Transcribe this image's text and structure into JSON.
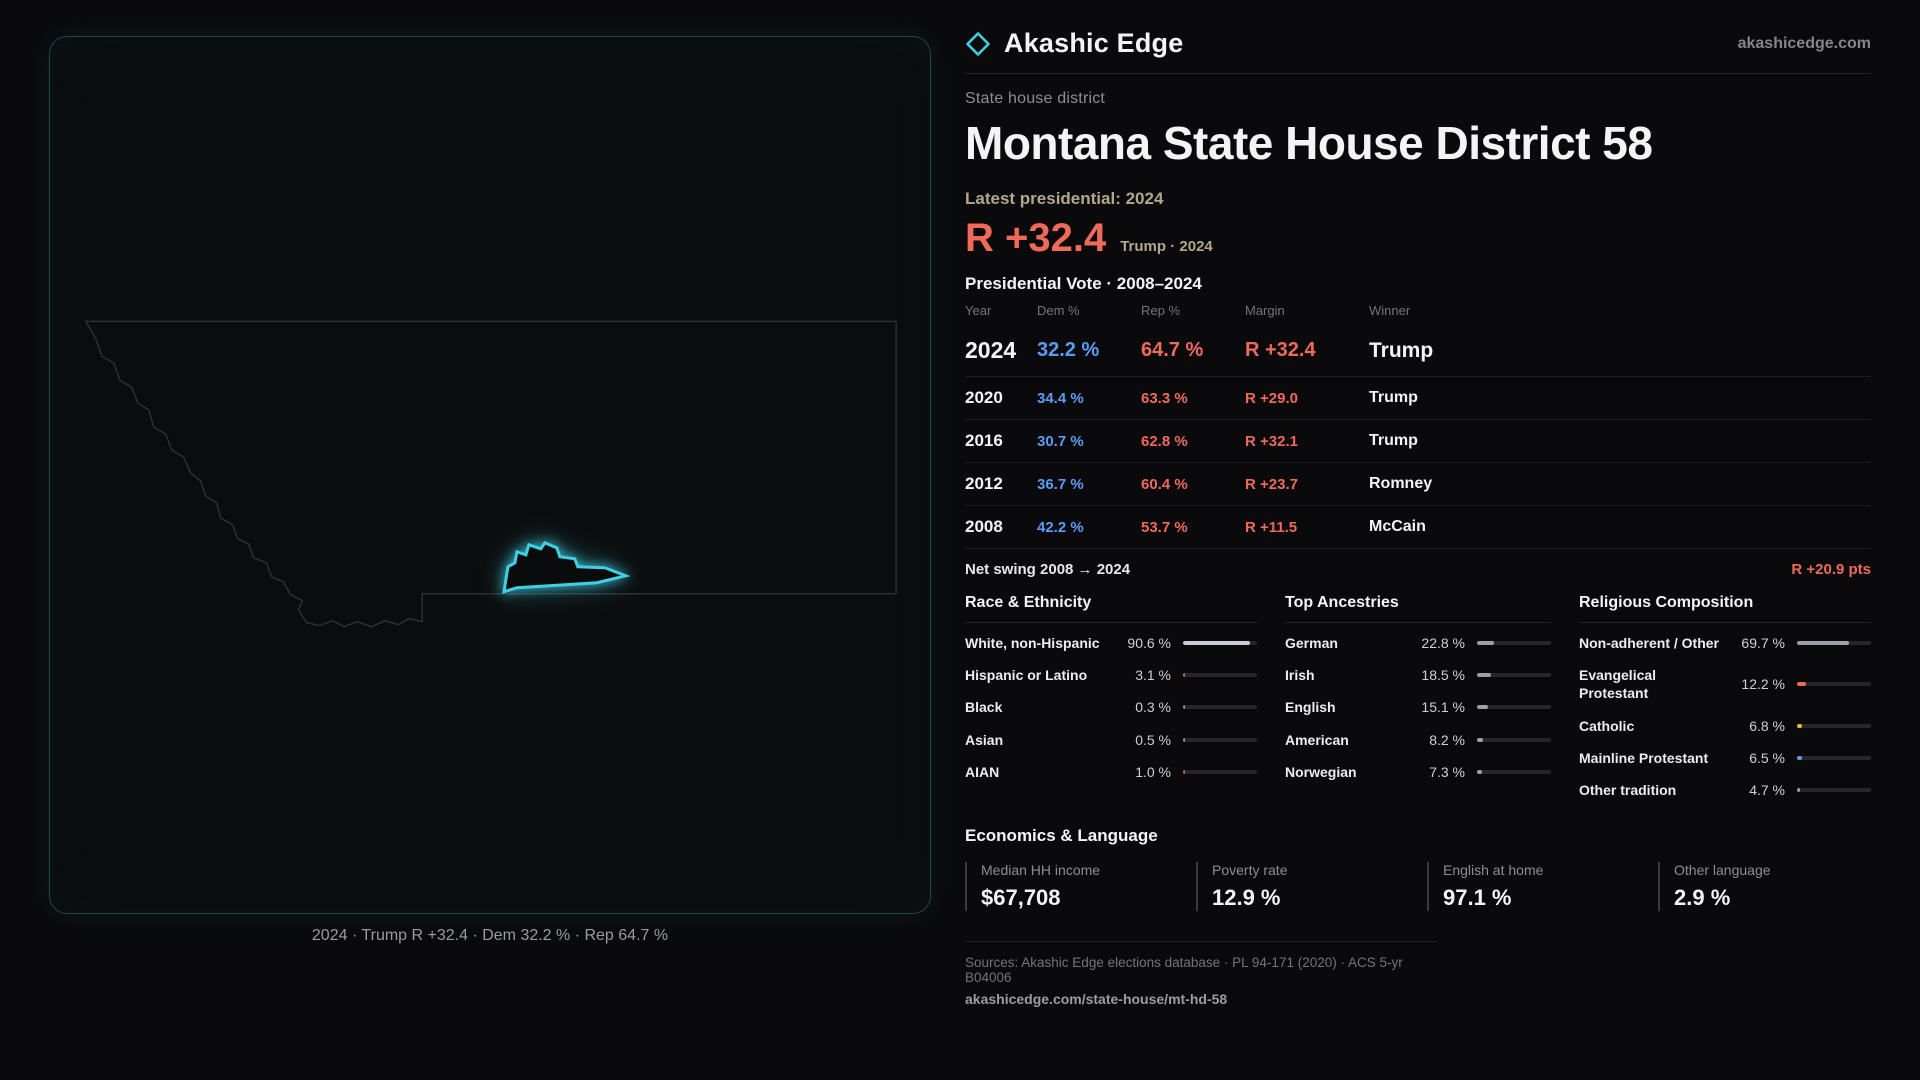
{
  "colors": {
    "rep": "#ef6a5a",
    "dem": "#5b9df5",
    "accent": "#3fd0e4",
    "tan": "#b3a78d"
  },
  "brand": {
    "name": "Akashic Edge",
    "domain": "akashicedge.com"
  },
  "map": {
    "caption": "2024 · Trump R +32.4 · Dem 32.2 % · Rep 64.7 %"
  },
  "district": {
    "kicker": "State house district",
    "title": "Montana State House District 58",
    "latest_label": "Latest presidential: 2024",
    "headline_margin": "R +32.4",
    "headline_context": "Trump · 2024"
  },
  "vote_table": {
    "title": "Presidential Vote · 2008–2024",
    "columns": {
      "year": "Year",
      "dem": "Dem %",
      "rep": "Rep %",
      "margin": "Margin",
      "winner": "Winner"
    },
    "rows": [
      {
        "year": "2024",
        "dem": "32.2 %",
        "rep": "64.7 %",
        "margin": "R +32.4",
        "winner": "Trump"
      },
      {
        "year": "2020",
        "dem": "34.4 %",
        "rep": "63.3 %",
        "margin": "R +29.0",
        "winner": "Trump"
      },
      {
        "year": "2016",
        "dem": "30.7 %",
        "rep": "62.8 %",
        "margin": "R +32.1",
        "winner": "Trump"
      },
      {
        "year": "2012",
        "dem": "36.7 %",
        "rep": "60.4 %",
        "margin": "R +23.7",
        "winner": "Romney"
      },
      {
        "year": "2008",
        "dem": "42.2 %",
        "rep": "53.7 %",
        "margin": "R +11.5",
        "winner": "McCain"
      }
    ],
    "net_swing_label": "Net swing 2008 → 2024",
    "net_swing_value": "R +20.9 pts"
  },
  "race": {
    "title": "Race & Ethnicity",
    "rows": [
      {
        "label": "White, non-Hispanic",
        "value": "90.6 %",
        "pct": 90.6,
        "color": "#c6ccd9"
      },
      {
        "label": "Hispanic or Latino",
        "value": "3.1 %",
        "pct": 3.1,
        "color": "#d9662e"
      },
      {
        "label": "Black",
        "value": "0.3 %",
        "pct": 0.3,
        "color": "#8f96a3"
      },
      {
        "label": "Asian",
        "value": "0.5 %",
        "pct": 0.5,
        "color": "#8f96a3"
      },
      {
        "label": "AIAN",
        "value": "1.0 %",
        "pct": 1.0,
        "color": "#d9662e"
      }
    ]
  },
  "ancestries": {
    "title": "Top Ancestries",
    "rows": [
      {
        "label": "German",
        "value": "22.8 %",
        "pct": 22.8,
        "color": "#9aa1ad"
      },
      {
        "label": "Irish",
        "value": "18.5 %",
        "pct": 18.5,
        "color": "#9aa1ad"
      },
      {
        "label": "English",
        "value": "15.1 %",
        "pct": 15.1,
        "color": "#9aa1ad"
      },
      {
        "label": "American",
        "value": "8.2 %",
        "pct": 8.2,
        "color": "#9aa1ad"
      },
      {
        "label": "Norwegian",
        "value": "7.3 %",
        "pct": 7.3,
        "color": "#9aa1ad"
      }
    ]
  },
  "religion": {
    "title": "Religious Composition",
    "rows": [
      {
        "label": "Non-adherent / Other",
        "value": "69.7 %",
        "pct": 69.7,
        "color": "#9aa1ad"
      },
      {
        "label": "Evangelical Protestant",
        "value": "12.2 %",
        "pct": 12.2,
        "color": "#ef6a5a"
      },
      {
        "label": "Catholic",
        "value": "6.8 %",
        "pct": 6.8,
        "color": "#e8b93c"
      },
      {
        "label": "Mainline Protestant",
        "value": "6.5 %",
        "pct": 6.5,
        "color": "#5b9df5"
      },
      {
        "label": "Other tradition",
        "value": "4.7 %",
        "pct": 4.7,
        "color": "#9aa1ad"
      }
    ]
  },
  "economics": {
    "title": "Economics & Language",
    "stats": [
      {
        "label": "Median HH income",
        "value": "$67,708"
      },
      {
        "label": "Poverty rate",
        "value": "12.9 %"
      },
      {
        "label": "English at home",
        "value": "97.1 %"
      },
      {
        "label": "Other language",
        "value": "2.9 %"
      }
    ]
  },
  "footer": {
    "sources": "Sources: Akashic Edge elections database · PL 94-171 (2020) · ACS 5-yr B04006",
    "permalink": "akashicedge.com/state-house/mt-hd-58"
  }
}
